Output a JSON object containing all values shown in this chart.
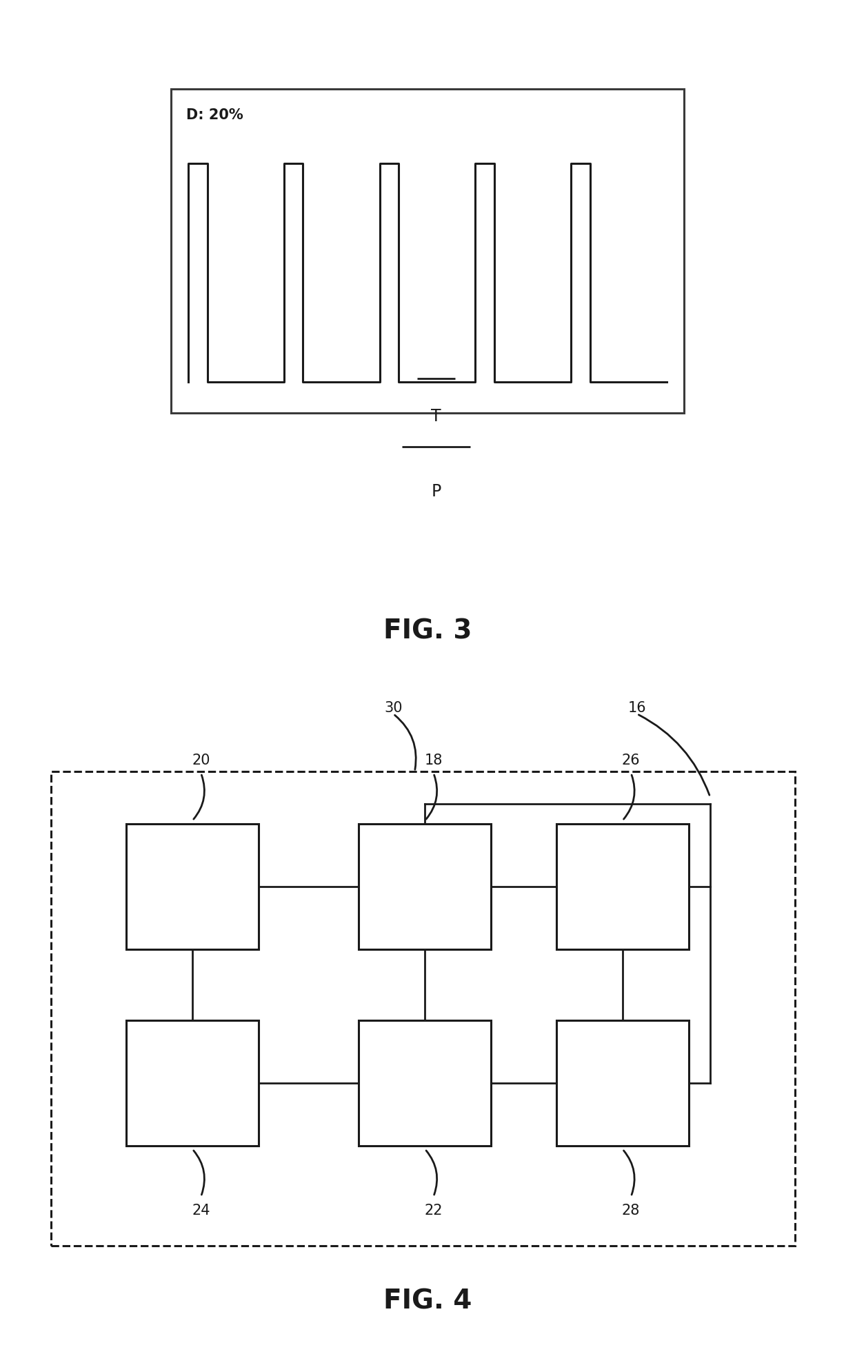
{
  "bg_color": "#ffffff",
  "fig3": {
    "title": "FIG. 3",
    "label_D": "D: 20%",
    "label_T": "T",
    "label_P": "P",
    "pulse_duty": 0.2,
    "num_pulses": 5
  },
  "fig4": {
    "title": "FIG. 4",
    "blocks": {
      "20": [
        0.155,
        0.575,
        0.155,
        0.2
      ],
      "24": [
        0.155,
        0.285,
        0.155,
        0.2
      ],
      "18": [
        0.425,
        0.575,
        0.155,
        0.2
      ],
      "22": [
        0.425,
        0.285,
        0.155,
        0.2
      ],
      "26": [
        0.655,
        0.575,
        0.155,
        0.2
      ],
      "28": [
        0.655,
        0.285,
        0.155,
        0.2
      ]
    }
  }
}
